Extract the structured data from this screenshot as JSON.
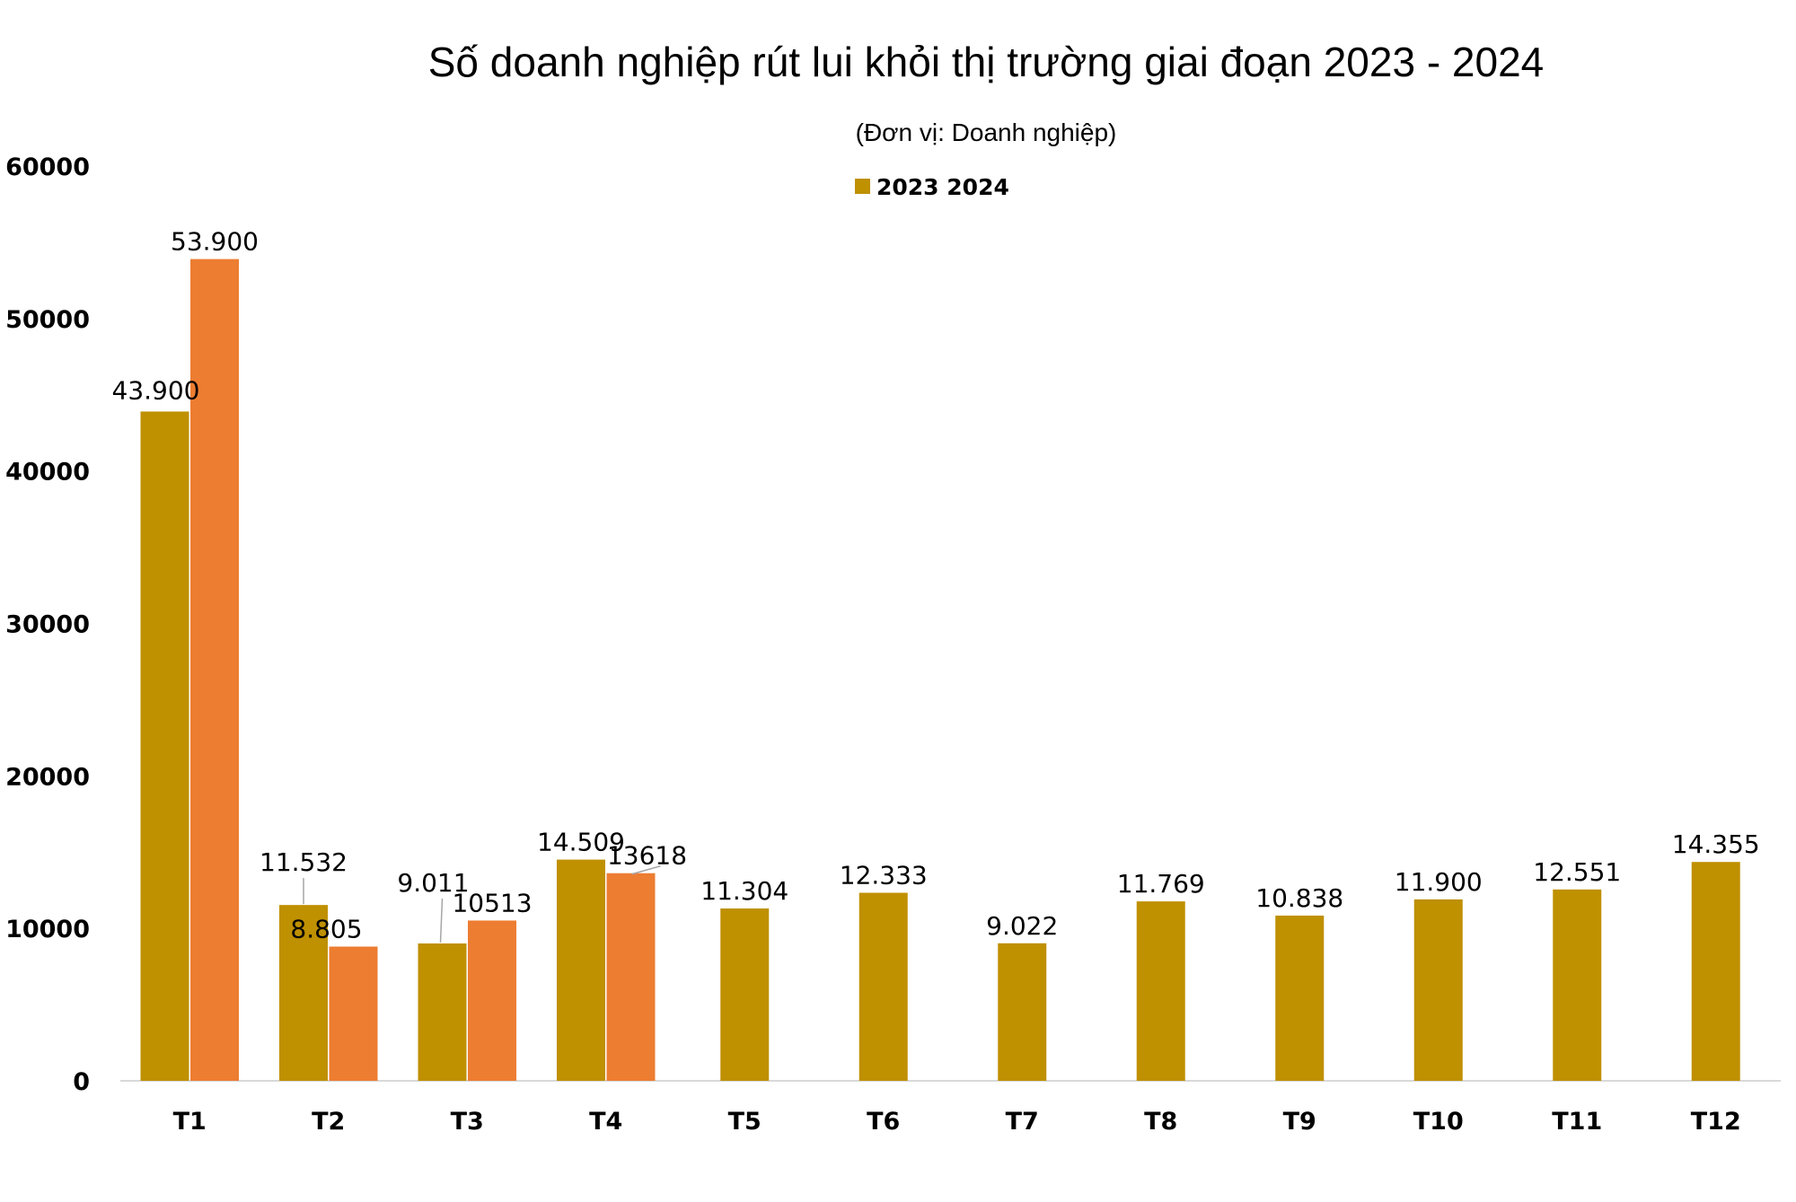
{
  "chart_data": {
    "type": "bar",
    "title": "Số doanh nghiệp rút lui khỏi thị trường giai đoạn 2023 - 2024",
    "subtitle": "(Đơn vị: Doanh nghiệp)",
    "legend": {
      "label": "2023 2024",
      "position": "top-center",
      "color": "#BF9000"
    },
    "categories": [
      "T1",
      "T2",
      "T3",
      "T4",
      "T5",
      "T6",
      "T7",
      "T8",
      "T9",
      "T10",
      "T11",
      "T12"
    ],
    "ylim": [
      0,
      60000
    ],
    "yticks": [
      "0",
      "10000",
      "20000",
      "30000",
      "40000",
      "50000",
      "60000"
    ],
    "grid": false,
    "series": [
      {
        "color": "#BF9000",
        "values": [
          43900,
          11532,
          9011,
          14509,
          11304,
          12333,
          9022,
          11769,
          10838,
          11900,
          12551,
          14355
        ],
        "labels": [
          "43.900",
          "11.532",
          "9.011",
          "14.509",
          "11.304",
          "12.333",
          "9.022",
          "11.769",
          "10.838",
          "11.900",
          "12.551",
          "14.355"
        ]
      },
      {
        "color": "#ED7D31",
        "values": [
          53900,
          8805,
          10513,
          13618,
          null,
          null,
          null,
          null,
          null,
          null,
          null,
          null
        ],
        "labels": [
          "53.900",
          "8.805",
          "10513",
          "13618",
          "",
          "",
          "",
          "",
          "",
          "",
          "",
          ""
        ]
      }
    ]
  }
}
